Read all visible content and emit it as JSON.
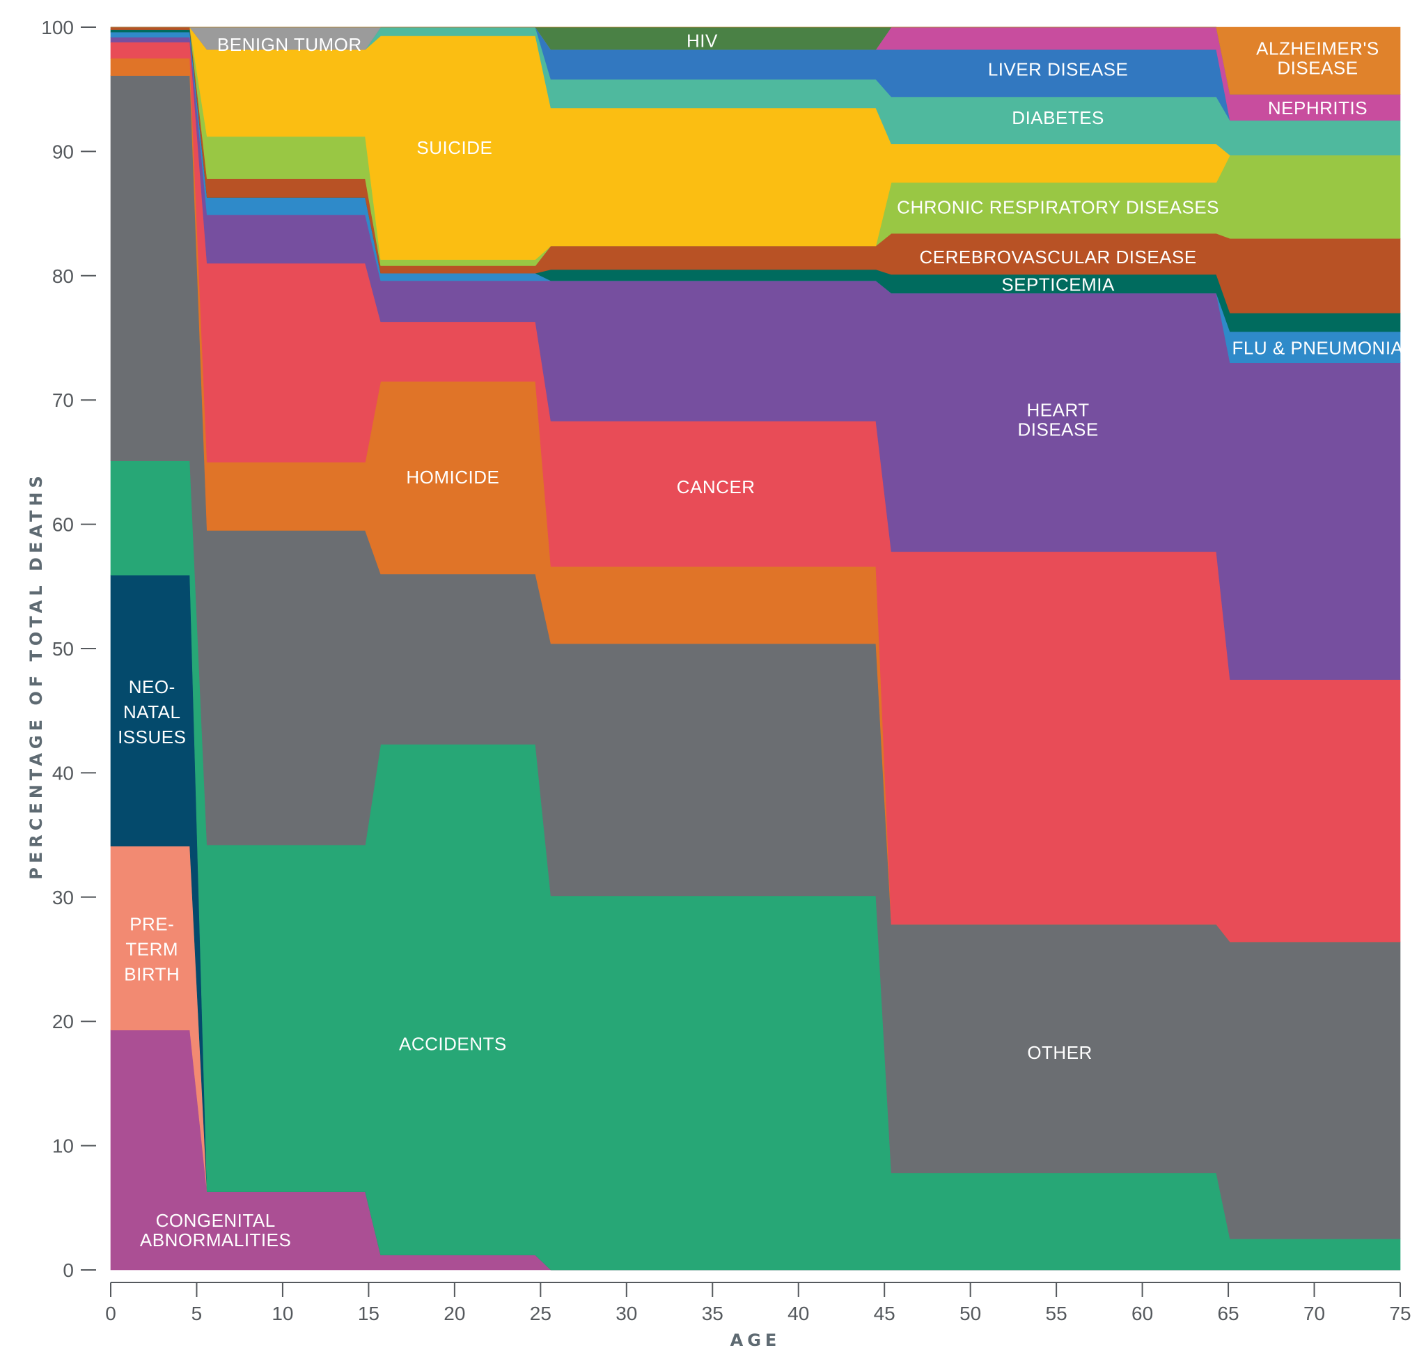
{
  "chart_data": {
    "type": "area",
    "stacked": true,
    "title": "",
    "xlabel": "AGE",
    "ylabel": "PERCENTAGE OF TOTAL DEATHS",
    "xlim": [
      0,
      75
    ],
    "ylim": [
      0,
      100
    ],
    "x_ticks": [
      "0",
      "5",
      "10",
      "15",
      "20",
      "25",
      "30",
      "35",
      "40",
      "45",
      "50",
      "55",
      "60",
      "65",
      "70",
      "75"
    ],
    "y_ticks": [
      "0",
      "10",
      "20",
      "30",
      "40",
      "50",
      "60",
      "70",
      "80",
      "90",
      "100"
    ],
    "grid": false,
    "legend": "none (direct labels)",
    "age_groups": [
      {
        "start": 0,
        "end": 4.6
      },
      {
        "start": 5.6,
        "end": 14.8
      },
      {
        "start": 15.7,
        "end": 24.7
      },
      {
        "start": 25.6,
        "end": 44.5
      },
      {
        "start": 45.4,
        "end": 64.3
      },
      {
        "start": 65.1,
        "end": 75
      }
    ],
    "series": [
      {
        "name": "CONGENITAL ABNORMALITIES",
        "label_lines": [
          "CONGENITAL",
          "ABNORMALITIES"
        ],
        "color": "#ab4f94",
        "values": [
          19.3,
          6.3,
          1.2,
          0,
          0,
          0
        ]
      },
      {
        "name": "PRE-TERM BIRTH",
        "label_lines": [
          "PRE-",
          "TERM",
          "BIRTH"
        ],
        "color": "#f28a72",
        "values": [
          14.8,
          0,
          0,
          0,
          0,
          0
        ]
      },
      {
        "name": "NEO-NATAL ISSUES",
        "label_lines": [
          "NEO-",
          "NATAL",
          "ISSUES"
        ],
        "color": "#044a6c",
        "values": [
          21.8,
          0,
          0,
          0,
          0,
          0
        ]
      },
      {
        "name": "ACCIDENTS",
        "label_lines": [
          "ACCIDENTS"
        ],
        "color": "#27a776",
        "values": [
          9.2,
          27.9,
          41.1,
          30.1,
          7.8,
          2.5
        ]
      },
      {
        "name": "OTHER",
        "label_lines": [
          "OTHER"
        ],
        "color": "#6b6e72",
        "values": [
          31.0,
          25.3,
          13.7,
          20.3,
          20.0,
          23.9
        ]
      },
      {
        "name": "HOMICIDE",
        "label_lines": [
          "HOMICIDE"
        ],
        "color": "#e07428",
        "values": [
          1.4,
          5.5,
          15.5,
          6.2,
          0,
          0
        ]
      },
      {
        "name": "CANCER",
        "label_lines": [
          "CANCER"
        ],
        "color": "#e84c57",
        "values": [
          1.3,
          16.0,
          4.8,
          11.7,
          30.0,
          21.1
        ]
      },
      {
        "name": "HEART DISEASE",
        "label_lines": [
          "HEART",
          "DISEASE"
        ],
        "color": "#764f9f",
        "values": [
          0.4,
          3.9,
          3.3,
          11.3,
          20.8,
          25.5
        ]
      },
      {
        "name": "FLU & PNEUMONIA",
        "label_lines": [
          "FLU & PNEUMONIA"
        ],
        "color": "#2f8ac9",
        "values": [
          0.4,
          1.4,
          0.6,
          0,
          0,
          2.5
        ]
      },
      {
        "name": "SEPTICEMIA",
        "label_lines": [
          "SEPTICEMIA"
        ],
        "color": "#006b5e",
        "values": [
          0.2,
          0,
          0,
          0.9,
          1.5,
          1.5
        ]
      },
      {
        "name": "CEREBROVASCULAR DISEASE",
        "label_lines": [
          "CEREBROVASCULAR DISEASE"
        ],
        "color": "#b85225",
        "values": [
          0.2,
          1.5,
          0.6,
          1.9,
          3.3,
          6.0
        ]
      },
      {
        "name": "CHRONIC RESPIRATORY DISEASES",
        "label_lines": [
          "CHRONIC RESPIRATORY DISEASES"
        ],
        "color": "#99c744",
        "values": [
          0,
          3.4,
          0.5,
          0,
          4.1,
          6.7
        ]
      },
      {
        "name": "SUICIDE",
        "label_lines": [
          "SUICIDE"
        ],
        "color": "#fbbe12",
        "values": [
          0,
          7.0,
          18.0,
          11.1,
          3.1,
          0
        ]
      },
      {
        "name": "DIABETES",
        "label_lines": [
          "DIABETES"
        ],
        "color": "#4fb99e",
        "values": [
          0,
          0,
          0.7,
          2.3,
          3.8,
          2.8
        ]
      },
      {
        "name": "LIVER DISEASE",
        "label_lines": [
          "LIVER DISEASE"
        ],
        "color": "#3278c0",
        "values": [
          0,
          0,
          0,
          2.4,
          3.8,
          0
        ]
      },
      {
        "name": "NEPHRITIS",
        "label_lines": [
          "NEPHRITIS"
        ],
        "color": "#c84d9e",
        "values": [
          0,
          0,
          0,
          0,
          1.8,
          2.1
        ]
      },
      {
        "name": "BENIGN TUMOR",
        "label_lines": [
          "BENIGN TUMOR"
        ],
        "color": "#9b9b9b",
        "values": [
          0,
          1.8,
          0,
          0,
          0,
          0
        ]
      },
      {
        "name": "HIV",
        "label_lines": [
          "HIV"
        ],
        "color": "#4a8145",
        "values": [
          0,
          0,
          0,
          1.8,
          0,
          0
        ]
      },
      {
        "name": "ALZHEIMER'S DISEASE",
        "label_lines": [
          "ALZHEIMER'S",
          "DISEASE"
        ],
        "color": "#e0822b",
        "values": [
          0,
          0,
          0,
          0,
          0,
          5.4
        ]
      }
    ]
  }
}
